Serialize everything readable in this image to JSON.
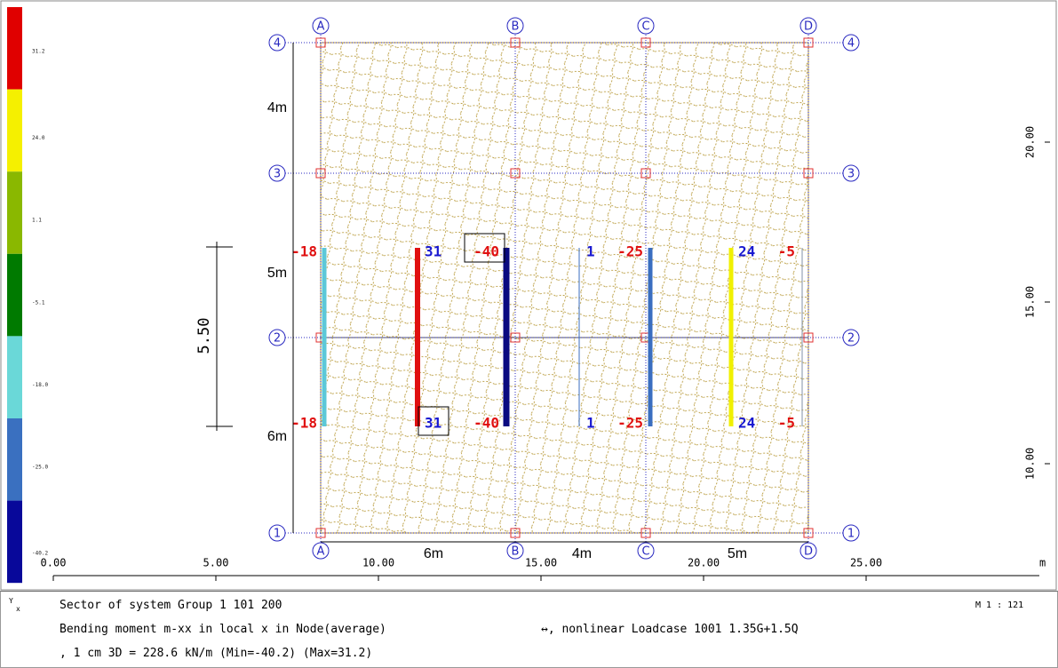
{
  "legend": {
    "values": [
      "31.2",
      "24.0",
      "1.1",
      "-5.1",
      "-18.0",
      "-25.0",
      "-40.2"
    ]
  },
  "x_axis": {
    "labels": [
      "0.00",
      "5.00",
      "10.00",
      "15.00",
      "20.00",
      "25.00"
    ],
    "unit": "m"
  },
  "y_axis": {
    "labels": [
      "20.00",
      "15.00",
      "10.00"
    ]
  },
  "grid": {
    "columns": [
      "A",
      "B",
      "C",
      "D"
    ],
    "rows": [
      "4",
      "3",
      "2",
      "1"
    ]
  },
  "dimensions": {
    "left": [
      "4m",
      "5m",
      "6m"
    ],
    "bottom": [
      "6m",
      "4m",
      "5m"
    ],
    "span": "5.50"
  },
  "results": [
    {
      "top": "-18",
      "bottom": "-18",
      "color": "#5cc8d8"
    },
    {
      "top": "31",
      "bottom": "31",
      "color": "#e01010"
    },
    {
      "top": "-40",
      "bottom": "-40",
      "color": "#0a0a80"
    },
    {
      "top": "1",
      "bottom": "1",
      "color": "#3a6ec0"
    },
    {
      "top": "-25",
      "bottom": "-25",
      "color": "#3a6ec0"
    },
    {
      "top": "24",
      "bottom": "24",
      "color": "#f0f000"
    },
    {
      "top": "-5",
      "bottom": "-5",
      "color": "#8090a8"
    }
  ],
  "footer": {
    "axis_y": "Y",
    "axis_x": "x",
    "line1": "Sector of system Group 1 101 200",
    "line2": "Bending moment m-xx in local x in Node(average)",
    "line2b": "↔, nonlinear Loadcase 1001 1.35G+1.5Q",
    "line3": ", 1 cm 3D = 228.6 kN/m (Min=-40.2) (Max=31.2)",
    "scale": "M 1 : 121"
  }
}
